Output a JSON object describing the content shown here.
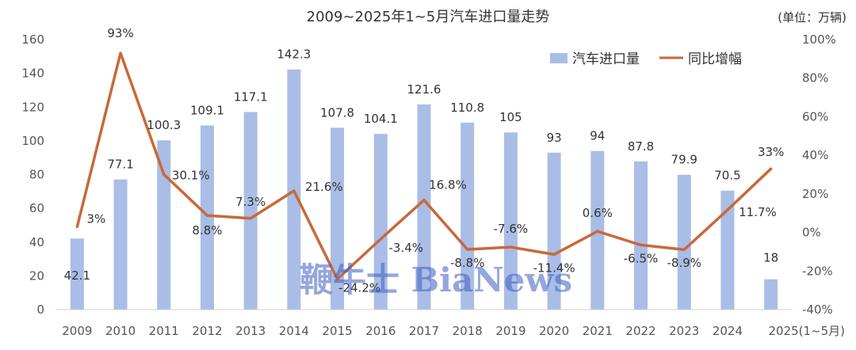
{
  "chart_data": {
    "type": "bar",
    "title": "2009~2025年1~5月汽车进口量走势",
    "unit_note": "(单位：万辆)",
    "categories": [
      "2009",
      "2010",
      "2011",
      "2012",
      "2013",
      "2014",
      "2015",
      "2016",
      "2017",
      "2018",
      "2019",
      "2020",
      "2021",
      "2022",
      "2023",
      "2024",
      "2025(1~5月)"
    ],
    "series": [
      {
        "name": "汽车进口量",
        "kind": "bar",
        "axis": "left",
        "color": "#a9bde6",
        "values": [
          42.1,
          77.1,
          100.3,
          109.1,
          117.1,
          142.3,
          107.8,
          104.1,
          121.6,
          110.8,
          105,
          93,
          94,
          87.8,
          79.9,
          70.5,
          18
        ],
        "labels": [
          "42.1",
          "77.1",
          "100.3",
          "109.1",
          "117.1",
          "142.3",
          "107.8",
          "104.1",
          "121.6",
          "110.8",
          "105",
          "93",
          "94",
          "87.8",
          "79.9",
          "70.5",
          "18"
        ]
      },
      {
        "name": "同比增幅",
        "kind": "line",
        "axis": "right",
        "color": "#c8693a",
        "values": [
          3,
          93,
          30.1,
          8.8,
          7.3,
          21.6,
          -24.2,
          -3.4,
          16.8,
          -8.8,
          -7.6,
          -11.4,
          0.6,
          -6.5,
          -8.9,
          11.7,
          33
        ],
        "labels": [
          "3%",
          "93%",
          "30.1%",
          "8.8%",
          "7.3%",
          "21.6%",
          "-24.2%",
          "-3.4%",
          "16.8%",
          "-8.8%",
          "-7.6%",
          "-11.4%",
          "0.6%",
          "-6.5%",
          "-8.9%",
          "11.7%",
          "33%"
        ]
      }
    ],
    "left_axis": {
      "ylim": [
        0,
        160
      ],
      "ticks": [
        "0",
        "20",
        "40",
        "60",
        "80",
        "100",
        "120",
        "140",
        "160"
      ]
    },
    "right_axis": {
      "ylim": [
        -40,
        100
      ],
      "ticks": [
        "-40%",
        "-20%",
        "0%",
        "20%",
        "40%",
        "60%",
        "80%",
        "100%"
      ]
    },
    "grid": false,
    "legend_position": "top-right"
  },
  "watermark": "鞭牛士 BiaNews"
}
